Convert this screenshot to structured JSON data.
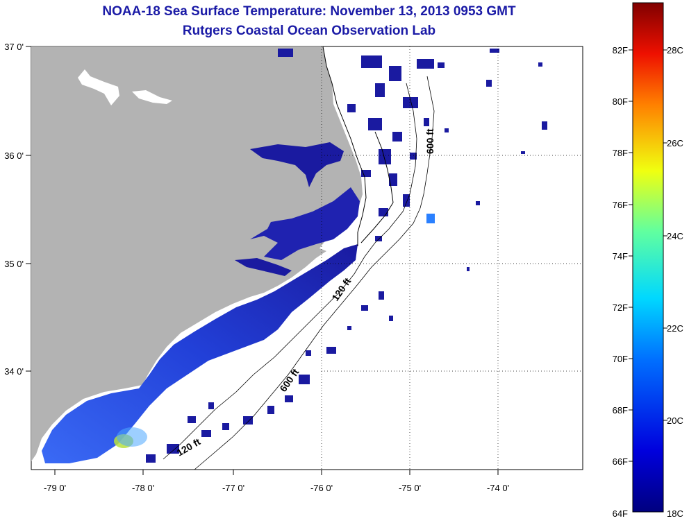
{
  "title": "NOAA-18 Sea Surface Temperature:  November 13, 2013 0953 GMT",
  "subtitle": "Rutgers Coastal Ocean Observation Lab",
  "map": {
    "lon_labels": [
      "-79 0'",
      "-78 0'",
      "-77 0'",
      "-76 0'",
      "-75 0'",
      "-74 0'"
    ],
    "lat_labels": [
      "37 0'",
      "36 0'",
      "35 0'",
      "34 0'"
    ],
    "contour_labels": [
      "600 ft",
      "120 ft",
      "600 ft",
      "120 ft"
    ],
    "colors": {
      "land": "#b3b3b3",
      "water_cold": "#1a1aa0",
      "water_mid": "#2a4fe0",
      "warm_spot": "#b8e040"
    }
  },
  "colorbar": {
    "fahrenheit_labels": [
      "82F",
      "80F",
      "78F",
      "76F",
      "74F",
      "72F",
      "70F",
      "68F",
      "66F",
      "64F"
    ],
    "celsius_labels": [
      "28C",
      "26C",
      "24C",
      "22C",
      "20C",
      "18C"
    ]
  }
}
